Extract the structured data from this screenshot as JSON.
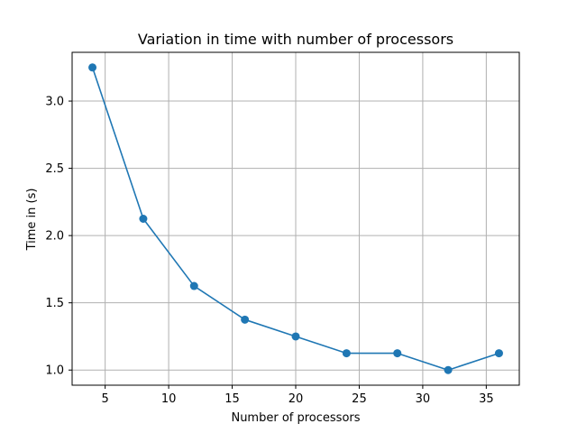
{
  "chart_data": {
    "type": "line",
    "title": "Variation in time with number of processors",
    "xlabel": "Number of processors",
    "ylabel": "Time in (s)",
    "x": [
      4,
      8,
      12,
      16,
      20,
      24,
      28,
      32,
      36
    ],
    "series": [
      {
        "values": [
          3.25,
          2.125,
          1.625,
          1.375,
          1.25,
          1.125,
          1.125,
          1.0,
          1.125
        ],
        "color": "#1f77b4",
        "marker": "circle"
      }
    ],
    "xlim": [
      2.4,
      37.6
    ],
    "ylim": [
      0.8875,
      3.3625
    ],
    "xticks": [
      5,
      10,
      15,
      20,
      25,
      30,
      35
    ],
    "xtick_labels": [
      "5",
      "10",
      "15",
      "20",
      "25",
      "30",
      "35"
    ],
    "yticks": [
      1.0,
      1.5,
      2.0,
      2.5,
      3.0
    ],
    "ytick_labels": [
      "1.0",
      "1.5",
      "2.0",
      "2.5",
      "3.0"
    ],
    "grid": true,
    "legend": "none"
  }
}
